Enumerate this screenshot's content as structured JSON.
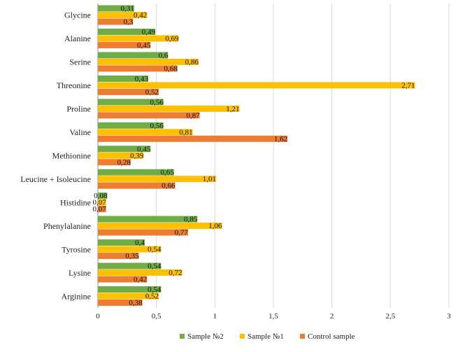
{
  "chart_data": {
    "type": "bar",
    "orientation": "horizontal",
    "categories": [
      "Glycine",
      "Alanine",
      "Serine",
      "Threonine",
      "Proline",
      "Valine",
      "Methionine",
      "Leucine + Isoleucine",
      "Histidine",
      "Phenylalanine",
      "Tyrosine",
      "Lysine",
      "Arginine"
    ],
    "series": [
      {
        "name": "Sample №2",
        "color": "#70ad47",
        "values": [
          0.31,
          0.49,
          0.6,
          0.43,
          0.56,
          0.56,
          0.45,
          0.65,
          0.08,
          0.85,
          0.4,
          0.54,
          0.54
        ],
        "labels": [
          "0,31",
          "0,49",
          "0,6",
          "0,43",
          "0,56",
          "0,56",
          "0,45",
          "0,65",
          "0,08",
          "0,85",
          "0,4",
          "0,54",
          "0,54"
        ]
      },
      {
        "name": "Sample №1",
        "color": "#ffc000",
        "values": [
          0.42,
          0.69,
          0.86,
          2.71,
          1.21,
          0.81,
          0.39,
          1.01,
          0.07,
          1.06,
          0.54,
          0.72,
          0.52
        ],
        "labels": [
          "0,42",
          "0,69",
          "0,86",
          "2,71",
          "1,21",
          "0,81",
          "0,39",
          "1,01",
          "0,07",
          "1,06",
          "0,54",
          "0,72",
          "0,52"
        ]
      },
      {
        "name": "Control sample",
        "color": "#ed7d31",
        "values": [
          0.3,
          0.45,
          0.68,
          0.52,
          0.87,
          1.62,
          0.28,
          0.66,
          0.07,
          0.77,
          0.35,
          0.42,
          0.38
        ],
        "labels": [
          "0,3",
          "0,45",
          "0,68",
          "0,52",
          "0,87",
          "1,62",
          "0,28",
          "0,66",
          "0,07",
          "0,77",
          "0,35",
          "0,42",
          "0,38"
        ]
      }
    ],
    "xlim": [
      0,
      3
    ],
    "xticks": [
      0,
      0.5,
      1,
      1.5,
      2,
      2.5,
      3
    ],
    "xtick_labels": [
      "0",
      "0,5",
      "1",
      "1,5",
      "2",
      "2,5",
      "3"
    ],
    "grid": true,
    "legend": "bottom"
  }
}
